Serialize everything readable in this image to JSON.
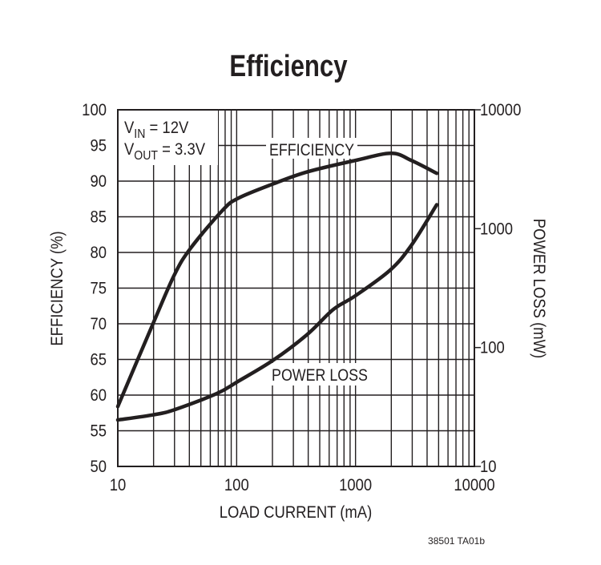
{
  "chart_data": {
    "type": "line",
    "title": "Efficiency",
    "xlabel": "LOAD CURRENT (mA)",
    "ylabel": "EFFICIENCY (%)",
    "y2label": "POWER LOSS (mW)",
    "x_scale": "log",
    "xlim": [
      10,
      10000
    ],
    "ylim": [
      50,
      100
    ],
    "y2_scale": "log",
    "y2lim": [
      10,
      10000
    ],
    "grid": true,
    "x_ticks": [
      "10",
      "100",
      "1000",
      "10000"
    ],
    "y_ticks": [
      "50",
      "55",
      "60",
      "65",
      "70",
      "75",
      "80",
      "85",
      "90",
      "95",
      "100"
    ],
    "y2_ticks": [
      "10",
      "100",
      "1000",
      "10000"
    ],
    "conditions": {
      "vin_main": "V",
      "vin_sub": "IN",
      "vin_value": " = 12V",
      "vout_main": "V",
      "vout_sub": "OUT",
      "vout_value": " = 3.3V"
    },
    "series": [
      {
        "name": "EFFICIENCY",
        "axis": "left",
        "x": [
          10,
          20,
          30,
          41,
          76,
          103,
          202,
          393,
          994,
          1995,
          2950,
          4820
        ],
        "y": [
          58.4,
          70.2,
          76.9,
          80.6,
          85.9,
          87.6,
          89.6,
          91.3,
          92.9,
          93.9,
          92.9,
          91.1
        ]
      },
      {
        "name": "POWER LOSS",
        "axis": "right",
        "x": [
          10,
          20,
          30,
          68,
          103,
          202,
          393,
          650,
          994,
          1950,
          2950,
          4820
        ],
        "y": [
          24.6,
          27.2,
          30,
          41,
          52,
          78,
          129,
          209,
          272,
          447,
          725,
          1590
        ]
      }
    ],
    "color": "#231f20",
    "footer": "38501 TA01b"
  }
}
